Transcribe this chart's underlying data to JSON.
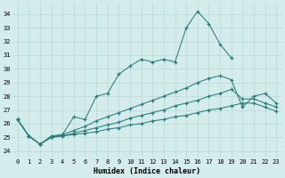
{
  "xlabel": "Humidex (Indice chaleur)",
  "bg_color": "#d4eceb",
  "grid_color": "#b8d8d6",
  "line_color": "#2a7d7b",
  "xlim": [
    -0.5,
    23.5
  ],
  "ylim": [
    23.5,
    34.8
  ],
  "xticks": [
    0,
    1,
    2,
    3,
    4,
    5,
    6,
    7,
    8,
    9,
    10,
    11,
    12,
    13,
    14,
    15,
    16,
    17,
    18,
    19,
    20,
    21,
    22,
    23
  ],
  "yticks": [
    24,
    25,
    26,
    27,
    28,
    29,
    30,
    31,
    32,
    33,
    34
  ],
  "curves": [
    {
      "x": [
        0,
        1,
        2,
        3,
        4,
        5,
        6,
        7,
        8,
        9,
        10,
        11,
        12,
        13,
        14,
        15,
        16,
        17,
        18,
        19
      ],
      "y": [
        26.3,
        25.1,
        24.5,
        25.1,
        25.2,
        26.5,
        26.3,
        28.0,
        28.2,
        29.6,
        30.2,
        30.7,
        30.5,
        30.7,
        30.5,
        33.0,
        34.2,
        33.3,
        31.8,
        30.8
      ]
    },
    {
      "x": [
        0,
        1,
        2,
        3,
        4,
        5,
        6,
        7,
        8,
        9,
        10,
        11,
        12,
        13,
        14,
        15,
        16,
        17,
        18,
        19,
        20,
        21,
        22,
        23
      ],
      "y": [
        26.3,
        25.1,
        24.5,
        25.0,
        25.2,
        25.5,
        25.8,
        26.2,
        26.5,
        26.8,
        27.1,
        27.4,
        27.7,
        28.0,
        28.3,
        28.6,
        29.0,
        29.3,
        29.5,
        29.2,
        27.2,
        28.0,
        28.2,
        27.5
      ]
    },
    {
      "x": [
        0,
        1,
        2,
        3,
        4,
        5,
        6,
        7,
        8,
        9,
        10,
        11,
        12,
        13,
        14,
        15,
        16,
        17,
        18,
        19,
        20,
        21,
        22,
        23
      ],
      "y": [
        26.3,
        25.1,
        24.5,
        25.0,
        25.1,
        25.3,
        25.5,
        25.7,
        25.9,
        26.1,
        26.4,
        26.6,
        26.8,
        27.0,
        27.3,
        27.5,
        27.7,
        28.0,
        28.2,
        28.5,
        27.8,
        27.8,
        27.5,
        27.2
      ]
    },
    {
      "x": [
        0,
        1,
        2,
        3,
        4,
        5,
        6,
        7,
        8,
        9,
        10,
        11,
        12,
        13,
        14,
        15,
        16,
        17,
        18,
        19,
        20,
        21,
        22,
        23
      ],
      "y": [
        26.3,
        25.1,
        24.5,
        25.0,
        25.1,
        25.2,
        25.3,
        25.4,
        25.6,
        25.7,
        25.9,
        26.0,
        26.2,
        26.3,
        26.5,
        26.6,
        26.8,
        27.0,
        27.1,
        27.3,
        27.5,
        27.5,
        27.2,
        26.9
      ]
    }
  ]
}
